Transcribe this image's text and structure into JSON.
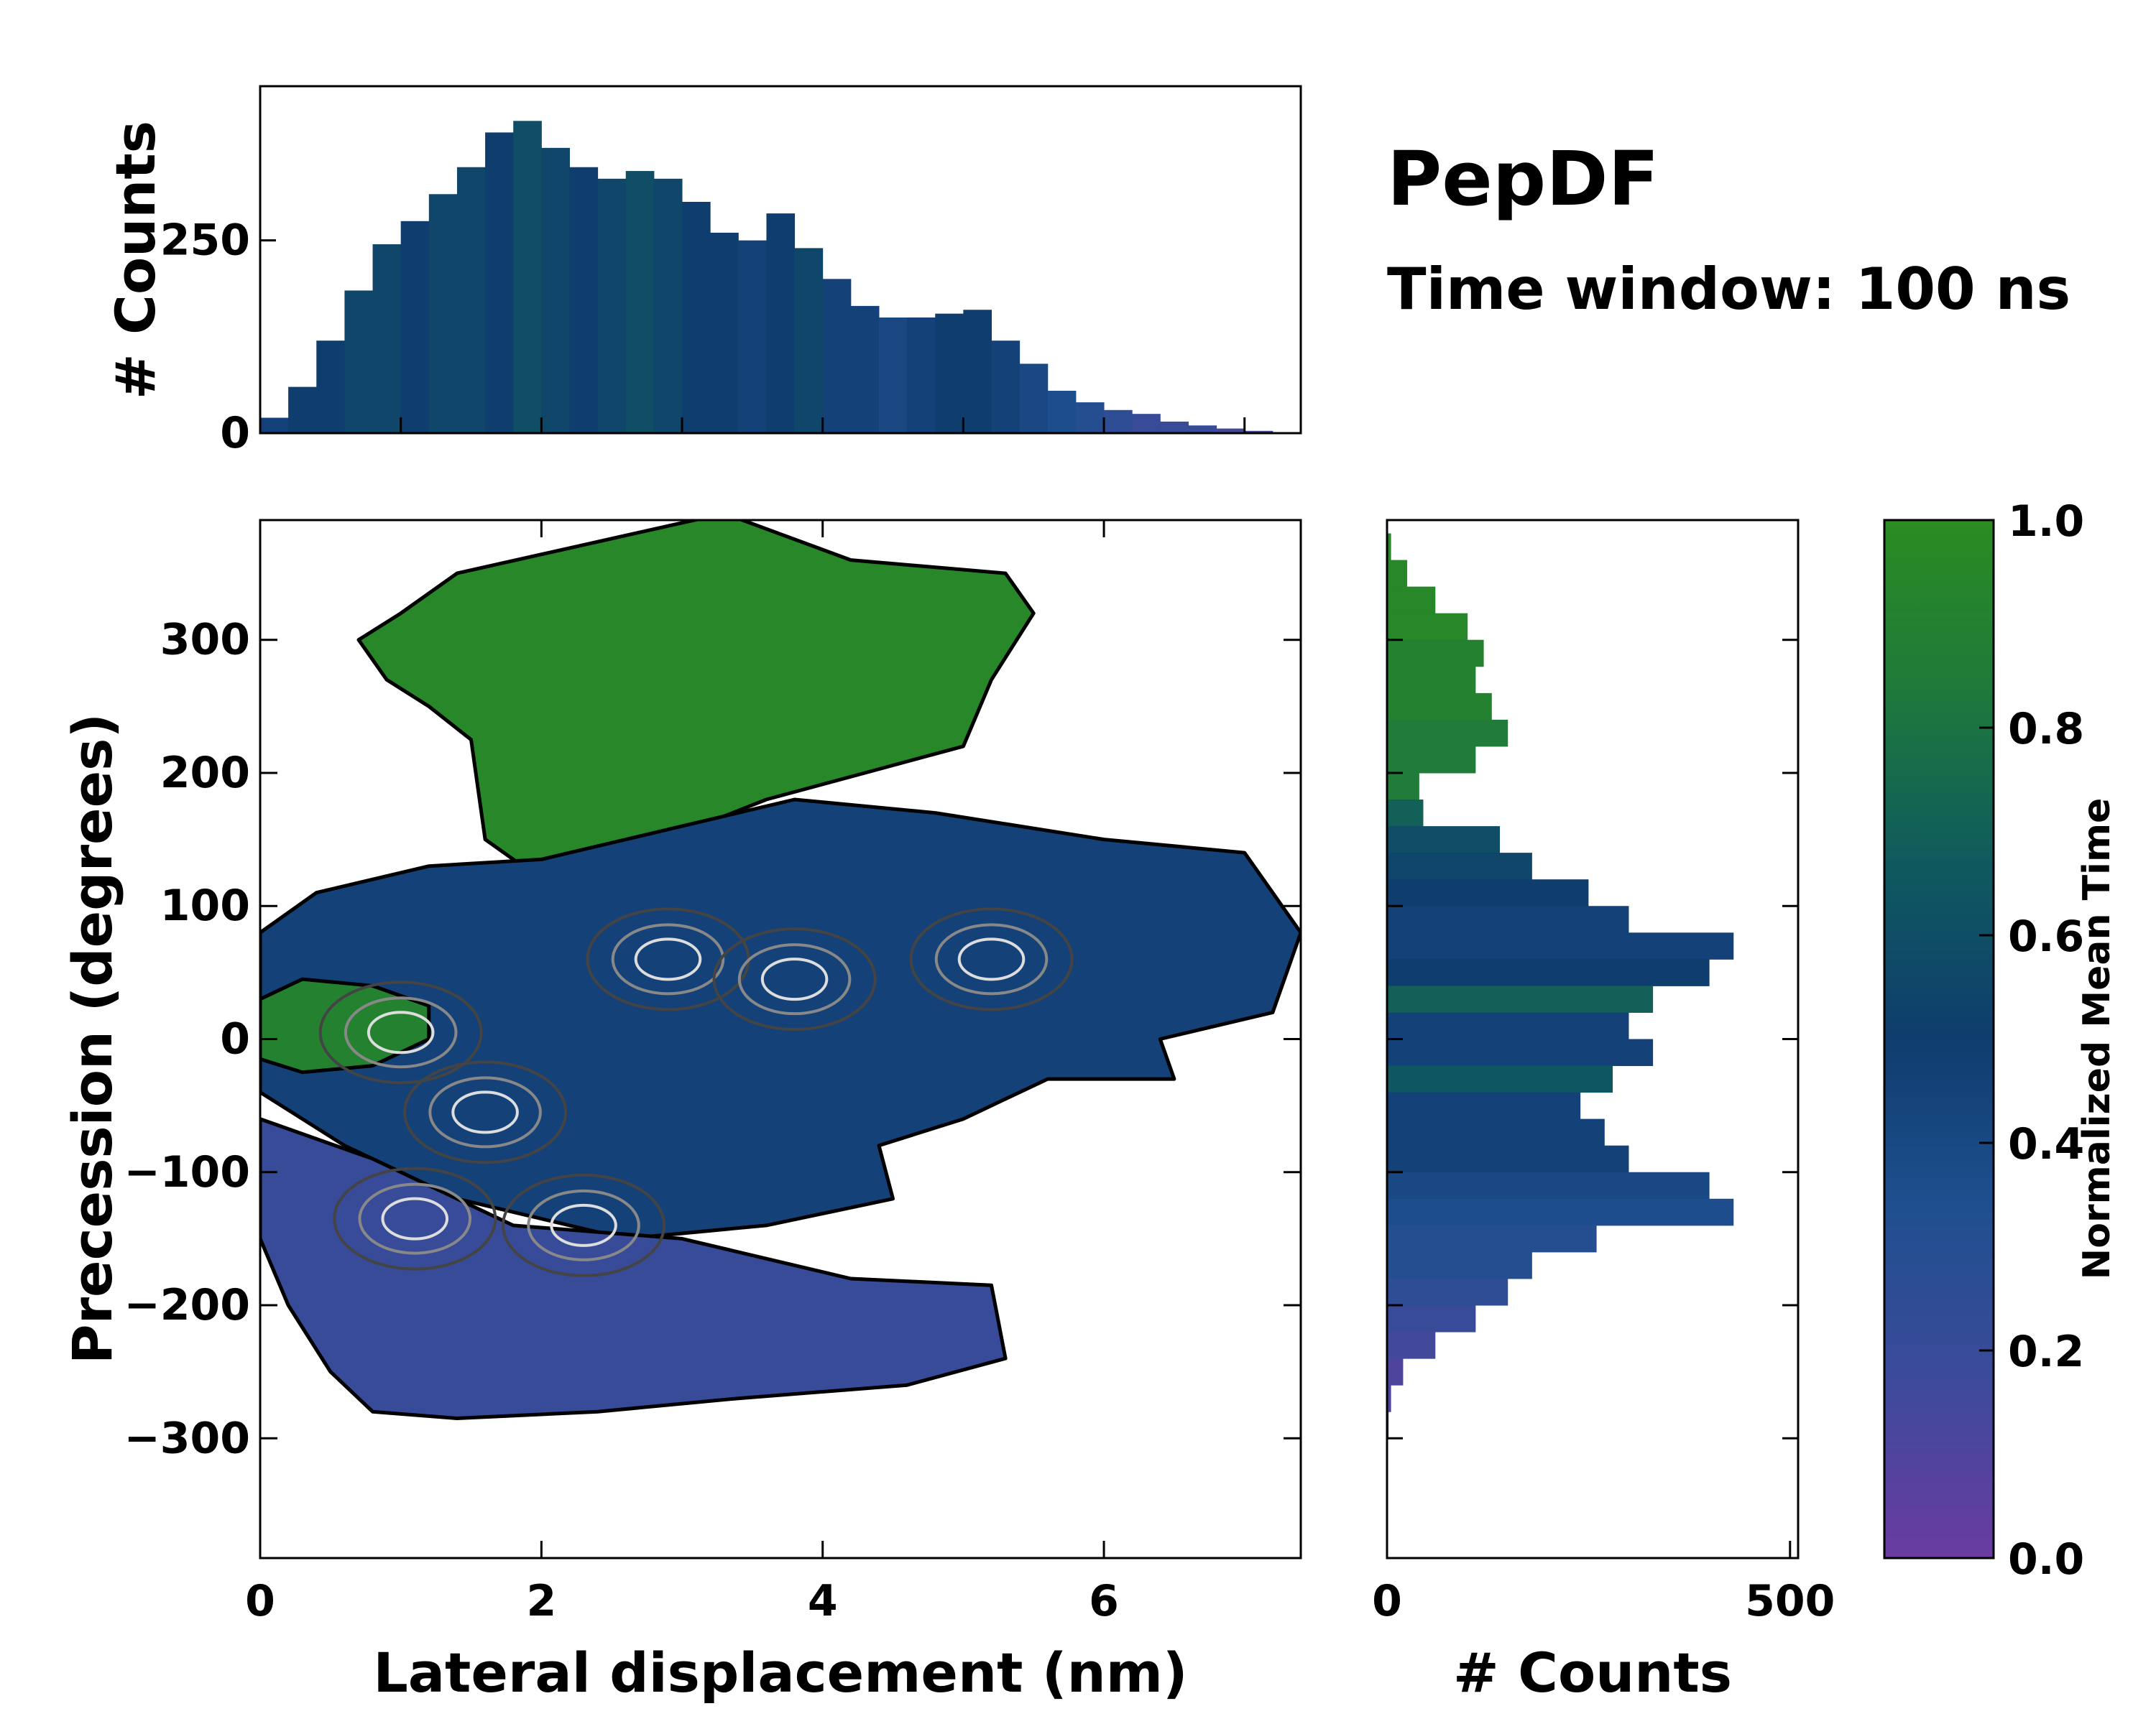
{
  "chart_data": [
    {
      "type": "bar",
      "panel": "top-histogram",
      "ylabel": "# Counts",
      "xlim": [
        0,
        7.4
      ],
      "ylim": [
        0,
        450
      ],
      "yticks": [
        0,
        250
      ],
      "ytick_labels": [
        "0",
        "250"
      ],
      "x_centers": [
        0.1,
        0.3,
        0.5,
        0.7,
        0.9,
        1.1,
        1.3,
        1.5,
        1.7,
        1.9,
        2.1,
        2.3,
        2.5,
        2.7,
        2.9,
        3.1,
        3.3,
        3.5,
        3.7,
        3.9,
        4.1,
        4.3,
        4.5,
        4.7,
        4.9,
        5.1,
        5.3,
        5.5,
        5.7,
        5.9,
        6.1,
        6.3,
        6.5,
        6.7,
        6.9,
        7.1,
        7.3
      ],
      "values": [
        20,
        60,
        120,
        185,
        245,
        275,
        310,
        345,
        390,
        405,
        370,
        345,
        330,
        340,
        330,
        300,
        260,
        250,
        285,
        240,
        200,
        165,
        150,
        150,
        155,
        160,
        120,
        90,
        55,
        40,
        30,
        25,
        15,
        10,
        6,
        3,
        1
      ],
      "mean_time": [
        0.45,
        0.5,
        0.5,
        0.55,
        0.55,
        0.5,
        0.55,
        0.55,
        0.5,
        0.6,
        0.55,
        0.5,
        0.55,
        0.6,
        0.55,
        0.5,
        0.5,
        0.45,
        0.5,
        0.55,
        0.45,
        0.45,
        0.4,
        0.45,
        0.5,
        0.5,
        0.45,
        0.4,
        0.35,
        0.3,
        0.25,
        0.2,
        0.2,
        0.2,
        0.15,
        0.15,
        0.1
      ]
    },
    {
      "type": "heatmap",
      "panel": "main",
      "xlabel": "Lateral displacement (nm)",
      "ylabel": "Precession (degrees)",
      "xlim": [
        0,
        7.4
      ],
      "ylim": [
        -390,
        390
      ],
      "xticks": [
        0,
        2,
        4,
        6
      ],
      "xtick_labels": [
        "0",
        "2",
        "4",
        "6"
      ],
      "yticks": [
        -300,
        -200,
        -100,
        0,
        100,
        200,
        300
      ],
      "ytick_labels": [
        "−300",
        "−200",
        "−100",
        "0",
        "100",
        "200",
        "300"
      ],
      "regions": [
        {
          "name": "upper",
          "mean_time": 0.95,
          "outline": [
            [
              1.4,
              350
            ],
            [
              3.3,
              395
            ],
            [
              4.2,
              360
            ],
            [
              5.3,
              350
            ],
            [
              5.5,
              320
            ],
            [
              5.2,
              270
            ],
            [
              5.0,
              220
            ],
            [
              4.3,
              200
            ],
            [
              3.6,
              180
            ],
            [
              3.0,
              155
            ],
            [
              2.0,
              120
            ],
            [
              1.6,
              150
            ],
            [
              1.5,
              225
            ],
            [
              1.2,
              250
            ],
            [
              0.9,
              270
            ],
            [
              0.7,
              300
            ],
            [
              1.0,
              320
            ]
          ]
        },
        {
          "name": "middle",
          "mean_time": 0.45,
          "outline": [
            [
              0.0,
              80
            ],
            [
              0.4,
              110
            ],
            [
              1.2,
              130
            ],
            [
              2.0,
              135
            ],
            [
              3.0,
              160
            ],
            [
              3.8,
              180
            ],
            [
              4.8,
              170
            ],
            [
              6.0,
              150
            ],
            [
              7.0,
              140
            ],
            [
              7.4,
              80
            ],
            [
              7.2,
              20
            ],
            [
              6.4,
              0
            ],
            [
              6.5,
              -30
            ],
            [
              5.6,
              -30
            ],
            [
              5.0,
              -60
            ],
            [
              4.4,
              -80
            ],
            [
              4.5,
              -120
            ],
            [
              3.6,
              -140
            ],
            [
              2.6,
              -150
            ],
            [
              1.4,
              -120
            ],
            [
              0.6,
              -80
            ],
            [
              0.0,
              -40
            ]
          ]
        },
        {
          "name": "lower",
          "mean_time": 0.2,
          "outline": [
            [
              0.0,
              -60
            ],
            [
              0.8,
              -90
            ],
            [
              1.8,
              -140
            ],
            [
              3.0,
              -150
            ],
            [
              4.2,
              -180
            ],
            [
              5.2,
              -185
            ],
            [
              5.3,
              -240
            ],
            [
              4.6,
              -260
            ],
            [
              3.4,
              -270
            ],
            [
              2.4,
              -280
            ],
            [
              1.4,
              -285
            ],
            [
              0.8,
              -280
            ],
            [
              0.5,
              -250
            ],
            [
              0.2,
              -200
            ],
            [
              0.0,
              -150
            ]
          ]
        },
        {
          "name": "left-green",
          "mean_time": 0.9,
          "outline": [
            [
              0.0,
              30
            ],
            [
              0.3,
              45
            ],
            [
              0.8,
              40
            ],
            [
              1.2,
              25
            ],
            [
              1.2,
              0
            ],
            [
              0.8,
              -20
            ],
            [
              0.3,
              -25
            ],
            [
              0.0,
              -15
            ]
          ]
        }
      ],
      "hotspots": [
        [
          1.0,
          5
        ],
        [
          1.6,
          -55
        ],
        [
          1.1,
          -135
        ],
        [
          2.3,
          -140
        ],
        [
          2.9,
          60
        ],
        [
          3.8,
          45
        ],
        [
          5.2,
          60
        ]
      ]
    },
    {
      "type": "bar",
      "panel": "right-histogram",
      "orientation": "horizontal",
      "xlabel": "# Counts",
      "xlim": [
        0,
        510
      ],
      "xticks": [
        0,
        500
      ],
      "xtick_labels": [
        "0",
        "500"
      ],
      "ylim": [
        -390,
        390
      ],
      "y_centers": [
        370,
        350,
        330,
        310,
        290,
        270,
        250,
        230,
        210,
        190,
        170,
        150,
        130,
        110,
        90,
        70,
        50,
        30,
        10,
        -10,
        -30,
        -50,
        -70,
        -90,
        -110,
        -130,
        -150,
        -170,
        -190,
        -210,
        -230,
        -250,
        -270,
        -290
      ],
      "values": [
        5,
        25,
        60,
        100,
        120,
        110,
        130,
        150,
        110,
        40,
        45,
        140,
        180,
        250,
        300,
        430,
        400,
        330,
        300,
        330,
        280,
        240,
        270,
        300,
        400,
        430,
        260,
        180,
        150,
        110,
        60,
        20,
        5,
        2
      ],
      "mean_time": [
        0.95,
        0.95,
        0.95,
        0.95,
        0.9,
        0.9,
        0.9,
        0.85,
        0.85,
        0.85,
        0.7,
        0.6,
        0.55,
        0.5,
        0.45,
        0.45,
        0.5,
        0.7,
        0.45,
        0.45,
        0.65,
        0.45,
        0.45,
        0.45,
        0.4,
        0.35,
        0.3,
        0.3,
        0.25,
        0.2,
        0.15,
        0.1,
        0.1,
        0.1
      ]
    },
    {
      "type": "colorbar",
      "label": "Normalized Mean Time",
      "range": [
        0.0,
        1.0
      ],
      "ticks": [
        0.0,
        0.2,
        0.4,
        0.6,
        0.8,
        1.0
      ],
      "tick_labels": [
        "0.0",
        "0.2",
        "0.4",
        "0.6",
        "0.8",
        "1.0"
      ],
      "colors": [
        "#6a3ca0",
        "#3d4a9a",
        "#1f4f8f",
        "#0f3d6e",
        "#0f5a5e",
        "#1f7a3a",
        "#2a8c22"
      ]
    }
  ],
  "title": "PepDF",
  "subtitle": "Time window: 100 ns"
}
